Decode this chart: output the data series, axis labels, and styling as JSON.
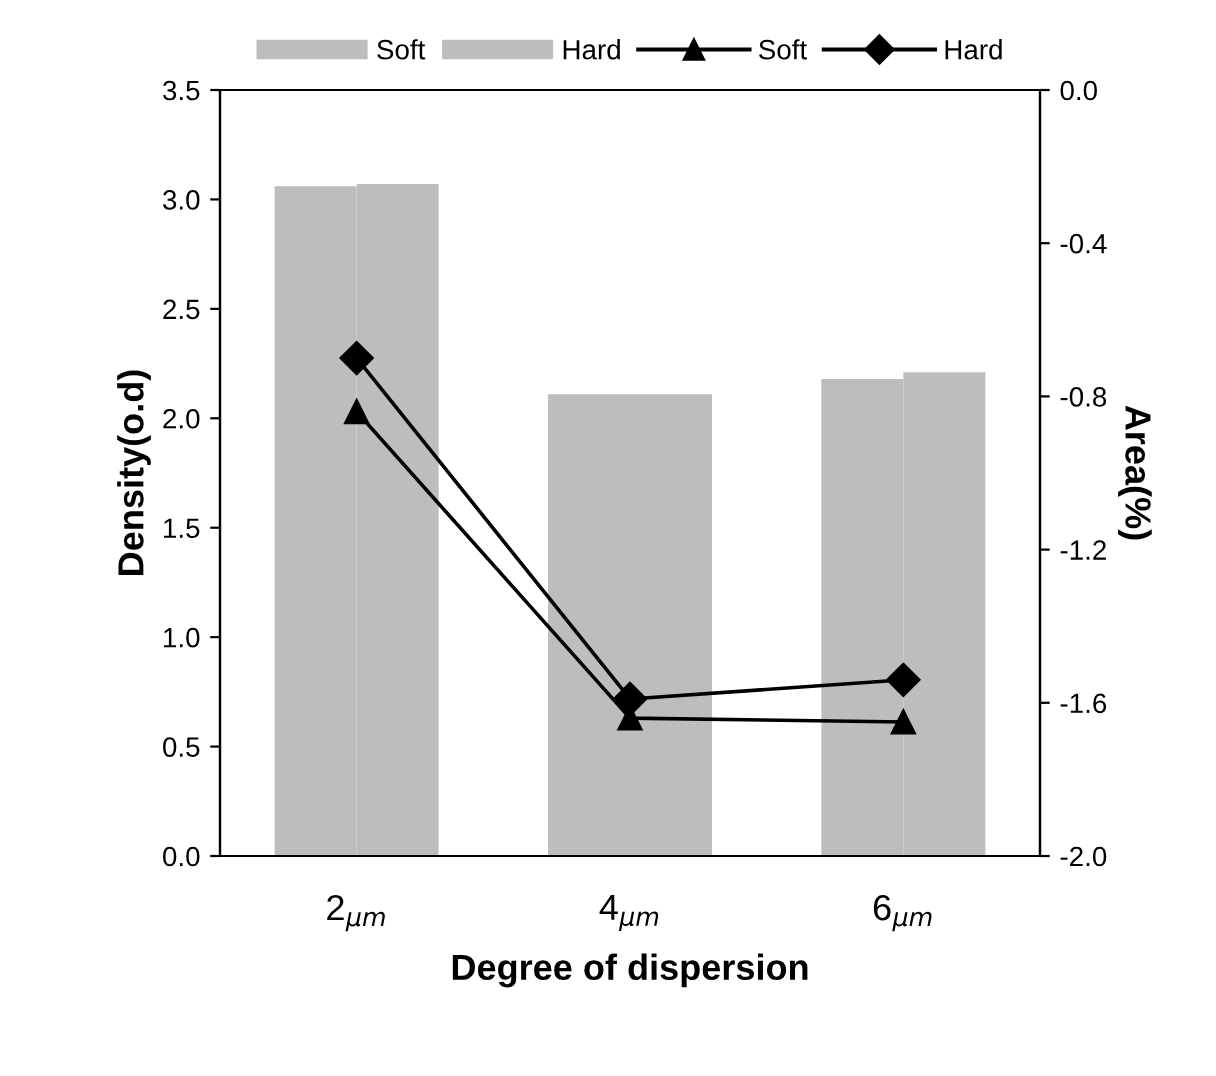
{
  "chart_data": {
    "type": "bar",
    "xlabel": "Degree of dispersion",
    "ylabel": "Density(o.d)",
    "y2label": "Area(%)",
    "categories": [
      "2$_{µm}$",
      "4$_{µm}$",
      "6$_{µm}$"
    ],
    "series": [
      {
        "name": "Soft",
        "color": "#bdbdbd",
        "values": [
          3.06,
          2.11,
          2.18
        ]
      },
      {
        "name": "Hard",
        "color": "#bdbdbd",
        "values": [
          3.07,
          2.11,
          2.21
        ]
      },
      {
        "name": "Soft",
        "type": "line",
        "axis": "y2",
        "color": "#000000",
        "marker": "triangle",
        "line_style": "solid",
        "values": [
          -0.84,
          -1.64,
          -1.65
        ]
      },
      {
        "name": "Hard",
        "type": "line",
        "axis": "y2",
        "color": "#000000",
        "marker": "diamond",
        "line_style": "solid",
        "values": [
          -0.7,
          -1.59,
          -1.54
        ]
      }
    ],
    "ylim": [
      0,
      3.5
    ],
    "yticks": [
      {
        "value": 0,
        "label": "0.0"
      },
      {
        "value": 0.5,
        "label": "0.5"
      },
      {
        "value": 1,
        "label": "1.0"
      },
      {
        "value": 1.5,
        "label": "1.5"
      },
      {
        "value": 2,
        "label": "2.0"
      },
      {
        "value": 2.5,
        "label": "2.5"
      },
      {
        "value": 3,
        "label": "3.0"
      },
      {
        "value": 3.5,
        "label": "3.5"
      }
    ],
    "y2lim": [
      -2,
      0
    ],
    "y2ticks": [
      {
        "value": -2,
        "label": "-2.0"
      },
      {
        "value": -1.6,
        "label": "-1.6"
      },
      {
        "value": -1.2,
        "label": "-1.2"
      },
      {
        "value": -0.8,
        "label": "-0.8"
      },
      {
        "value": -0.4,
        "label": "-0.4"
      },
      {
        "value": 0,
        "label": "0.0"
      }
    ],
    "grid": false,
    "legend": "top"
  }
}
